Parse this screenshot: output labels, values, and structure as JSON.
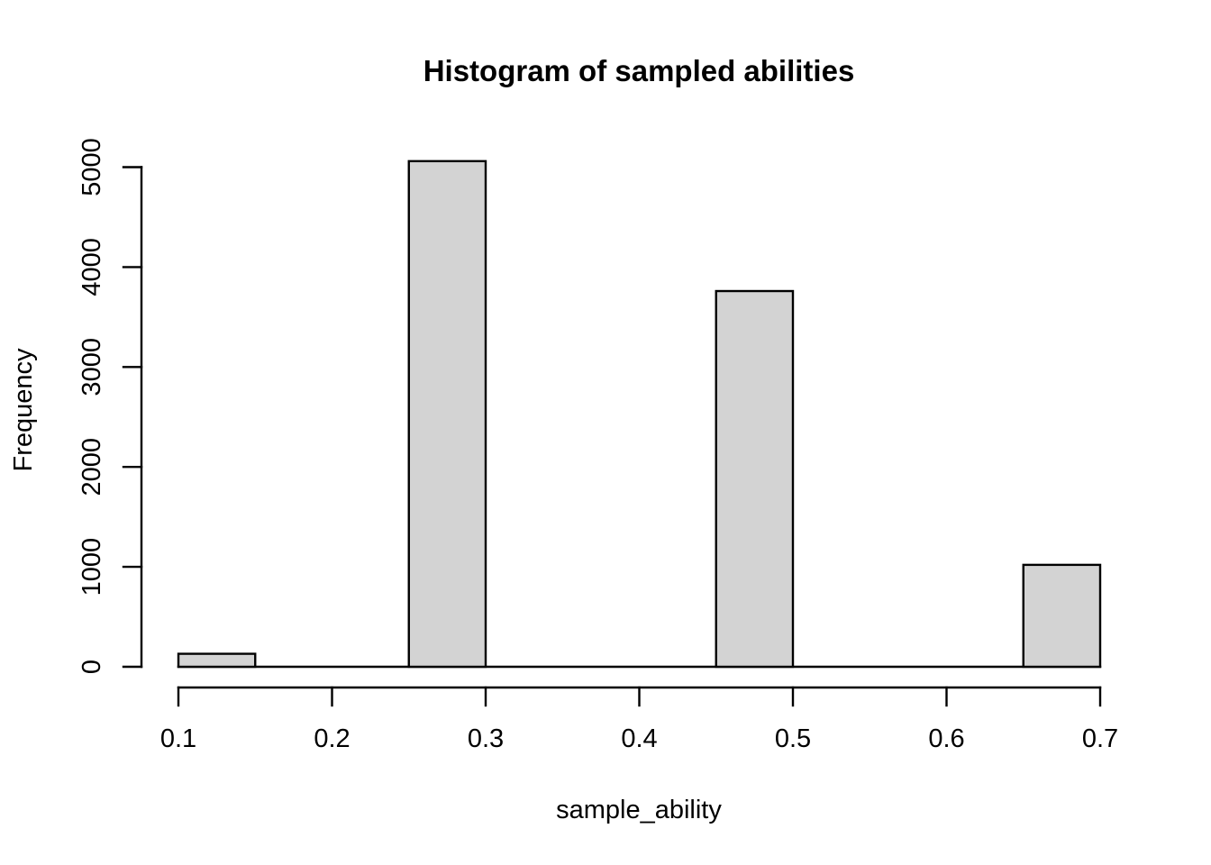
{
  "chart_data": {
    "type": "bar",
    "subtype": "histogram",
    "title": "Histogram of sampled abilities",
    "xlabel": "sample_ability",
    "ylabel": "Frequency",
    "xlim": [
      0.1,
      0.7
    ],
    "ylim": [
      0,
      5000
    ],
    "bin_width": 0.05,
    "bins": [
      {
        "range": [
          0.1,
          0.15
        ],
        "count": 130
      },
      {
        "range": [
          0.25,
          0.3
        ],
        "count": 5060
      },
      {
        "range": [
          0.45,
          0.5
        ],
        "count": 3760
      },
      {
        "range": [
          0.65,
          0.7
        ],
        "count": 1020
      }
    ],
    "x_ticks": [
      {
        "value": 0.1,
        "label": "0.1"
      },
      {
        "value": 0.2,
        "label": "0.2"
      },
      {
        "value": 0.3,
        "label": "0.3"
      },
      {
        "value": 0.4,
        "label": "0.4"
      },
      {
        "value": 0.5,
        "label": "0.5"
      },
      {
        "value": 0.6,
        "label": "0.6"
      },
      {
        "value": 0.7,
        "label": "0.7"
      }
    ],
    "y_ticks": [
      {
        "value": 0,
        "label": "0"
      },
      {
        "value": 1000,
        "label": "1000"
      },
      {
        "value": 2000,
        "label": "2000"
      },
      {
        "value": 3000,
        "label": "3000"
      },
      {
        "value": 4000,
        "label": "4000"
      },
      {
        "value": 5000,
        "label": "5000"
      }
    ],
    "grid": false,
    "legend": "none",
    "colors": {
      "bar_fill": "#d3d3d3",
      "bar_border": "#000000",
      "axis": "#000000",
      "text": "#000000",
      "background": "#ffffff"
    }
  }
}
